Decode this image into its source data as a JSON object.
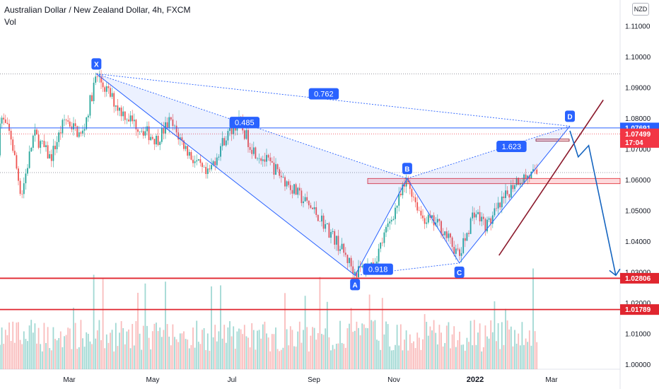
{
  "header": {
    "title": "Australian Dollar / New Zealand Dollar, 4h, FXCM",
    "indicator": "Vol",
    "currency": "NZD"
  },
  "chart_data": {
    "type": "candlestick",
    "symbol": "AUDNZD",
    "timeframe": "4h",
    "x_ticks": [
      "Mar",
      "May",
      "Jul",
      "Sep",
      "Nov",
      "2022",
      "Mar"
    ],
    "y_ticks": [
      "1.11000",
      "1.10000",
      "1.09000",
      "1.08000",
      "1.07000",
      "1.06000",
      "1.05000",
      "1.04000",
      "1.03000",
      "1.02000",
      "1.01000",
      "1.00000"
    ],
    "ylim": [
      0.9985,
      1.1185
    ],
    "price_tags": [
      {
        "value": "1.07691",
        "bg": "#2962ff",
        "price": 1.07691
      },
      {
        "value": "1.07499",
        "bg": "#f23645",
        "price": 1.07499
      },
      {
        "value": "17:04",
        "bg": "#f23645",
        "price": 1.0722
      },
      {
        "value": "1.02806",
        "bg": "#e0262f",
        "price": 1.02806
      },
      {
        "value": "1.01789",
        "bg": "#e0262f",
        "price": 1.01789
      }
    ],
    "harmonic_points": [
      {
        "label": "X",
        "month": 2.65,
        "price": 1.0945
      },
      {
        "label": "A",
        "month": 8.85,
        "price": 1.029
      },
      {
        "label": "B",
        "month": 10.1,
        "price": 1.0605
      },
      {
        "label": "C",
        "month": 11.35,
        "price": 1.033
      },
      {
        "label": "D",
        "month": 14.0,
        "price": 1.0775
      }
    ],
    "ratios": [
      {
        "value": "0.762",
        "month": 8.1,
        "price": 1.088
      },
      {
        "value": "0.485",
        "month": 6.2,
        "price": 1.0787
      },
      {
        "value": "1.623",
        "month": 12.6,
        "price": 1.0709
      },
      {
        "value": "0.918",
        "month": 9.4,
        "price": 1.031
      }
    ],
    "colors": {
      "up": "#26a69a",
      "down": "#ef5350",
      "pattern": "#2962ff",
      "resistance": "#e0262f",
      "trend": "#8b1a2c"
    }
  }
}
